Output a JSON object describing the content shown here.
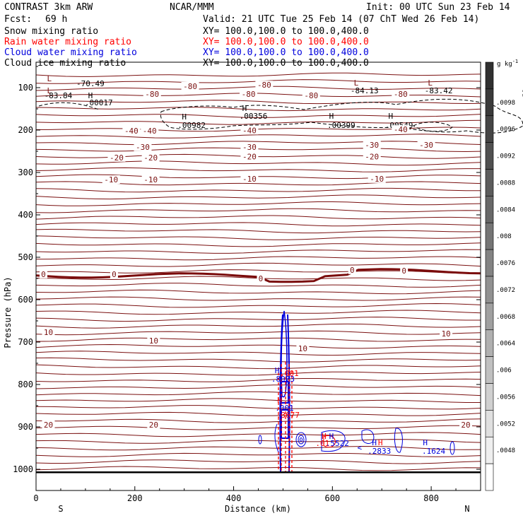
{
  "header": {
    "model": "CONTRAST  3km ARW",
    "org": "NCAR/MMM",
    "init": "Init: 00 UTC Sun 23 Feb 14",
    "fcst_label": "Fcst:",
    "fcst_value": "69 h",
    "valid": "Valid: 21 UTC Tue 25 Feb 14 (07 ChT Wed 26 Feb 14)"
  },
  "fields": [
    {
      "label": "Snow mixing ratio",
      "xy": "XY= 100.0,100.0 to 100.0,400.0",
      "color": "#000000"
    },
    {
      "label": "Rain water mixing ratio",
      "xy": "XY= 100.0,100.0 to 100.0,400.0",
      "color": "#ff0000"
    },
    {
      "label": "Cloud water mixing ratio",
      "xy": "XY= 100.0,100.0 to 100.0,400.0",
      "color": "#0000dd"
    },
    {
      "label": "Cloud ice mixing ratio",
      "xy": "XY= 100.0,100.0 to 100.0,400.0",
      "color": "#000000"
    }
  ],
  "chart_data": {
    "type": "contour cross-section",
    "xlabel": "Distance (km)",
    "ylabel": "Pressure (hPa)",
    "xlim": [
      0,
      900
    ],
    "ylim": [
      1050,
      40
    ],
    "x_ticks": [
      "0",
      "200",
      "400",
      "600",
      "800"
    ],
    "x_tick_values": [
      0,
      200,
      400,
      600,
      800
    ],
    "y_ticks": [
      "100",
      "200",
      "300",
      "400",
      "500",
      "600",
      "700",
      "800",
      "900",
      "1000"
    ],
    "y_tick_values": [
      100,
      200,
      300,
      400,
      500,
      600,
      700,
      800,
      900,
      1000
    ],
    "direction_labels": [
      "S",
      "N"
    ],
    "colorbar": {
      "unit": "g kg",
      "unit_exp": "-1",
      "labels": [
        ".0098",
        ".0096",
        ".0092",
        ".0088",
        ".0084",
        ".008",
        ".0076",
        ".0072",
        ".0068",
        ".0064",
        ".006",
        ".0056",
        ".0052",
        ".0048"
      ],
      "values": [
        0.0098,
        0.0096,
        0.0092,
        0.0088,
        0.0084,
        0.008,
        0.0076,
        0.0072,
        0.0068,
        0.0064,
        0.006,
        0.0056,
        0.0052,
        0.0048
      ],
      "colors": [
        "#303030",
        "#3a3a3a",
        "#454545",
        "#505050",
        "#5c5c5c",
        "#686868",
        "#757575",
        "#838383",
        "#919191",
        "#a0a0a0",
        "#b0b0b0",
        "#c0c0c0",
        "#d0d0d0",
        "#e0e0e0",
        "#efefef",
        "#ffffff"
      ]
    },
    "temperature_contours": {
      "color": "#7a1010",
      "zero_color": "#7a0a0a",
      "lines": [
        {
          "value": -80,
          "p": 113
        },
        {
          "value": -70,
          "p": 93
        },
        {
          "value": -40,
          "p": 205
        },
        {
          "value": -30,
          "p": 243
        },
        {
          "value": -20,
          "p": 268
        },
        {
          "value": -10,
          "p": 320
        },
        {
          "value": 0,
          "p": 543
        },
        {
          "value": 10,
          "p": 700
        },
        {
          "value": 20,
          "p": 898
        }
      ],
      "labels": [
        {
          "text": "-80",
          "x": 235,
          "p": 118
        },
        {
          "text": "-80",
          "x": 312,
          "p": 100
        },
        {
          "text": "-80",
          "x": 462,
          "p": 97
        },
        {
          "text": "-80",
          "x": 430,
          "p": 118
        },
        {
          "text": "-80",
          "x": 557,
          "p": 122
        },
        {
          "text": "-80",
          "x": 738,
          "p": 118
        },
        {
          "text": "-40",
          "x": 193,
          "p": 205
        },
        {
          "text": "-40",
          "x": 230,
          "p": 205
        },
        {
          "text": "-40",
          "x": 432,
          "p": 204
        },
        {
          "text": "-40",
          "x": 738,
          "p": 202
        },
        {
          "text": "-30",
          "x": 216,
          "p": 243
        },
        {
          "text": "-30",
          "x": 432,
          "p": 243
        },
        {
          "text": "-30",
          "x": 680,
          "p": 238
        },
        {
          "text": "-30",
          "x": 790,
          "p": 238
        },
        {
          "text": "-20",
          "x": 163,
          "p": 268
        },
        {
          "text": "-20",
          "x": 232,
          "p": 268
        },
        {
          "text": "-20",
          "x": 432,
          "p": 266
        },
        {
          "text": "-20",
          "x": 680,
          "p": 266
        },
        {
          "text": "-10",
          "x": 152,
          "p": 320
        },
        {
          "text": "-10",
          "x": 232,
          "p": 320
        },
        {
          "text": "-10",
          "x": 432,
          "p": 318
        },
        {
          "text": "-10",
          "x": 690,
          "p": 318
        },
        {
          "text": "0",
          "x": 15,
          "p": 543
        },
        {
          "text": "0",
          "x": 158,
          "p": 543
        },
        {
          "text": "0",
          "x": 455,
          "p": 553
        },
        {
          "text": "0",
          "x": 640,
          "p": 533
        },
        {
          "text": "0",
          "x": 745,
          "p": 535
        },
        {
          "text": "10",
          "x": 25,
          "p": 680
        },
        {
          "text": "10",
          "x": 238,
          "p": 700
        },
        {
          "text": "10",
          "x": 540,
          "p": 718
        },
        {
          "text": "10",
          "x": 830,
          "p": 683
        },
        {
          "text": "20",
          "x": 25,
          "p": 898
        },
        {
          "text": "20",
          "x": 238,
          "p": 898
        },
        {
          "text": "20",
          "x": 870,
          "p": 898
        }
      ]
    },
    "extrema": [
      {
        "text": "L",
        "x": 27,
        "p": 85,
        "color": "#7a1010"
      },
      {
        "text": "L",
        "x": 27,
        "p": 113,
        "color": "#7a1010"
      },
      {
        "text": "-70.49",
        "x": 110,
        "p": 97,
        "color": "#000000"
      },
      {
        "text": "-83.84",
        "x": 45,
        "p": 125,
        "color": "#000000"
      },
      {
        "text": "H",
        "x": 110,
        "p": 125,
        "color": "#000000"
      },
      {
        "text": ".00017",
        "x": 127,
        "p": 142,
        "color": "#000000"
      },
      {
        "text": "H",
        "x": 300,
        "p": 175,
        "color": "#000000"
      },
      {
        "text": ".00982",
        "x": 315,
        "p": 195,
        "color": "#000000"
      },
      {
        "text": "H",
        "x": 422,
        "p": 155,
        "color": "#000000"
      },
      {
        "text": ".00356",
        "x": 440,
        "p": 173,
        "color": "#000000"
      },
      {
        "text": "H",
        "x": 598,
        "p": 173,
        "color": "#000000"
      },
      {
        "text": ".00399",
        "x": 618,
        "p": 195,
        "color": "#000000"
      },
      {
        "text": "H",
        "x": 718,
        "p": 173,
        "color": "#000000"
      },
      {
        "text": ".00549",
        "x": 735,
        "p": 195,
        "color": "#000000"
      },
      {
        "text": "L",
        "x": 648,
        "p": 95,
        "color": "#7a1010"
      },
      {
        "text": "-84.13",
        "x": 665,
        "p": 113,
        "color": "#000000"
      },
      {
        "text": "L",
        "x": 798,
        "p": 95,
        "color": "#7a1010"
      },
      {
        "text": "-83.42",
        "x": 815,
        "p": 113,
        "color": "#000000"
      },
      {
        "text": "H",
        "x": 488,
        "p": 773,
        "color": "#0000dd"
      },
      {
        "text": ".8073",
        "x": 500,
        "p": 793,
        "color": "#0000dd"
      },
      {
        "text": ".001",
        "x": 513,
        "p": 780,
        "color": "#ff0000"
      },
      {
        "text": "H",
        "x": 493,
        "p": 843,
        "color": "#ff0000"
      },
      {
        "text": ".001",
        "x": 503,
        "p": 862,
        "color": "#0000dd"
      },
      {
        "text": ".3677",
        "x": 510,
        "p": 878,
        "color": "#ff0000"
      },
      {
        "text": "H",
        "x": 583,
        "p": 928,
        "color": "#ff0000"
      },
      {
        "text": "H",
        "x": 598,
        "p": 928,
        "color": "#0000dd"
      },
      {
        "text": ".01",
        "x": 580,
        "p": 945,
        "color": "#ff0000"
      },
      {
        "text": ".5522",
        "x": 610,
        "p": 945,
        "color": "#0000dd"
      },
      {
        "text": "H",
        "x": 685,
        "p": 943,
        "color": "#0000dd"
      },
      {
        "text": "H",
        "x": 697,
        "p": 943,
        "color": "#ff0000"
      },
      {
        "text": ".2833",
        "x": 695,
        "p": 963,
        "color": "#0000dd"
      },
      {
        "text": "H",
        "x": 788,
        "p": 943,
        "color": "#0000dd"
      },
      {
        "text": ".1624",
        "x": 805,
        "p": 963,
        "color": "#0000dd"
      },
      {
        "text": "<",
        "x": 655,
        "p": 955,
        "color": "#0000dd"
      }
    ]
  }
}
